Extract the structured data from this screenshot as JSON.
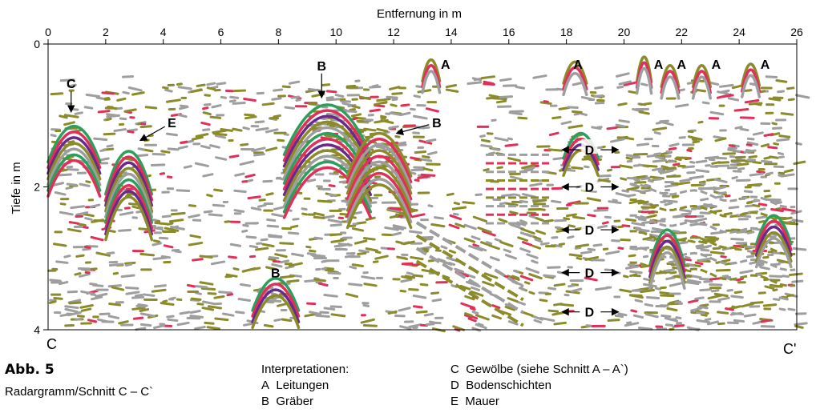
{
  "chart_data": {
    "type": "heatmap",
    "title": "",
    "xlabel": "Entfernung in m",
    "ylabel": "Tiefe in m",
    "xlim": [
      0,
      26
    ],
    "ylim": [
      0,
      4
    ],
    "x_axis_position": "top",
    "x_ticks": [
      0,
      2,
      4,
      6,
      8,
      10,
      12,
      14,
      16,
      18,
      20,
      22,
      24,
      26
    ],
    "y_ticks": [
      0,
      2,
      4
    ],
    "y_tick_labels": [
      "0",
      "2",
      "4"
    ],
    "x_tick_labels": [
      "0",
      "2",
      "4",
      "6",
      "8",
      "10",
      "12",
      "14",
      "16",
      "18",
      "20",
      "22",
      "24",
      "26"
    ],
    "start_label": "C",
    "end_label": "C'",
    "palette": [
      "#9e9e9e",
      "#8b8b2a",
      "#e0305a",
      "#2aa05a",
      "#6a2a8a"
    ],
    "annotations": [
      {
        "label": "C",
        "x": 0.8,
        "y": 0.55,
        "arrow_x": 0.8,
        "arrow_y": 0.95
      },
      {
        "label": "E",
        "x": 4.3,
        "y": 1.1,
        "arrow_x": 3.2,
        "arrow_y": 1.35
      },
      {
        "label": "B",
        "x": 9.5,
        "y": 0.3,
        "arrow_x": 9.5,
        "arrow_y": 0.75
      },
      {
        "label": "B",
        "x": 13.5,
        "y": 1.1,
        "arrow_x": 12.1,
        "arrow_y": 1.25
      },
      {
        "label": "B",
        "x": 7.9,
        "y": 3.2
      },
      {
        "label": "A",
        "x": 13.8,
        "y": 0.28
      },
      {
        "label": "A",
        "x": 18.4,
        "y": 0.28
      },
      {
        "label": "A",
        "x": 21.2,
        "y": 0.28
      },
      {
        "label": "A",
        "x": 22.0,
        "y": 0.28
      },
      {
        "label": "A",
        "x": 23.2,
        "y": 0.28
      },
      {
        "label": "A",
        "x": 24.9,
        "y": 0.28
      },
      {
        "label": "D",
        "x": 18.8,
        "y": 1.48
      },
      {
        "label": "D",
        "x": 18.8,
        "y": 2.0
      },
      {
        "label": "D",
        "x": 18.8,
        "y": 2.6
      },
      {
        "label": "D",
        "x": 18.8,
        "y": 3.2
      },
      {
        "label": "D",
        "x": 18.8,
        "y": 3.75
      }
    ]
  },
  "caption": {
    "figure_label": "Abb. 5",
    "subtitle": "Radargramm/Schnitt C – C`",
    "interpretation_title": "Interpretationen:",
    "legend": [
      {
        "key": "A",
        "text": "Leitungen"
      },
      {
        "key": "B",
        "text": "Gräber"
      },
      {
        "key": "C",
        "text": "Gewölbe (siehe Schnitt A – A`)"
      },
      {
        "key": "D",
        "text": "Bodenschichten"
      },
      {
        "key": "E",
        "text": "Mauer"
      }
    ]
  }
}
